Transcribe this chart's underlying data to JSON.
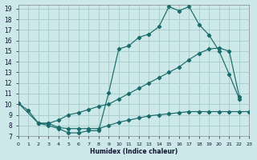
{
  "xlabel": "Humidex (Indice chaleur)",
  "xlim": [
    0,
    23
  ],
  "ylim": [
    7,
    19.4
  ],
  "xtick_labels": [
    "0",
    "1",
    "2",
    "3",
    "4",
    "5",
    "6",
    "7",
    "8",
    "9",
    "10",
    "11",
    "12",
    "13",
    "14",
    "15",
    "16",
    "17",
    "18",
    "19",
    "20",
    "21",
    "22",
    "23"
  ],
  "xticks": [
    0,
    1,
    2,
    3,
    4,
    5,
    6,
    7,
    8,
    9,
    10,
    11,
    12,
    13,
    14,
    15,
    16,
    17,
    18,
    19,
    20,
    21,
    22,
    23
  ],
  "yticks": [
    7,
    8,
    9,
    10,
    11,
    12,
    13,
    14,
    15,
    16,
    17,
    18,
    19
  ],
  "bg_color": "#cce8e8",
  "grid_color": "#aacece",
  "line_color": "#1a6b6b",
  "line1_x": [
    0,
    1,
    2,
    3,
    4,
    5,
    6,
    7,
    8,
    9,
    10,
    11,
    12,
    13,
    14,
    15,
    16,
    17,
    18,
    19,
    20,
    21,
    22
  ],
  "line1_y": [
    10.1,
    9.4,
    8.2,
    8.0,
    7.7,
    7.3,
    7.3,
    7.5,
    7.5,
    11.1,
    15.2,
    15.5,
    16.3,
    16.6,
    17.3,
    19.2,
    18.8,
    19.2,
    17.5,
    16.5,
    15.0,
    12.8,
    10.5
  ],
  "line2_x": [
    2,
    3,
    4,
    5,
    6,
    7,
    8,
    9,
    10,
    11,
    12,
    13,
    14,
    15,
    16,
    17,
    18,
    19,
    20,
    21,
    22
  ],
  "line2_y": [
    8.2,
    8.2,
    8.5,
    9.0,
    9.2,
    9.5,
    9.8,
    10.0,
    10.5,
    11.0,
    11.5,
    12.0,
    12.5,
    13.0,
    13.5,
    14.2,
    14.8,
    15.2,
    15.3,
    15.0,
    10.7
  ],
  "line3_x": [
    0,
    2,
    3,
    4,
    5,
    6,
    7,
    8,
    9,
    10,
    11,
    12,
    13,
    14,
    15,
    16,
    17,
    18,
    19,
    20,
    21,
    22,
    23
  ],
  "line3_y": [
    10.1,
    8.2,
    8.2,
    7.8,
    7.7,
    7.7,
    7.7,
    7.7,
    8.0,
    8.3,
    8.5,
    8.7,
    8.9,
    9.0,
    9.1,
    9.2,
    9.3,
    9.3,
    9.3,
    9.3,
    9.3,
    9.3,
    9.3
  ]
}
